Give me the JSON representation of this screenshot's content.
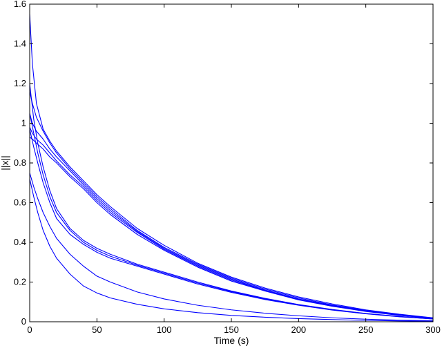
{
  "chart_data": {
    "type": "line",
    "title": "",
    "xlabel": "Time (s)",
    "ylabel": "||x||",
    "xlim": [
      0,
      300
    ],
    "ylim": [
      0,
      1.6
    ],
    "xticks": [
      0,
      50,
      100,
      150,
      200,
      250,
      300
    ],
    "yticks": [
      0,
      0.2,
      0.4,
      0.6,
      0.8,
      1,
      1.2,
      1.4,
      1.6
    ],
    "xtick_labels": [
      "0",
      "50",
      "100",
      "150",
      "200",
      "250",
      "300"
    ],
    "ytick_labels": [
      "0",
      "0.2",
      "0.4",
      "0.6",
      "0.8",
      "1",
      "1.2",
      "1.4",
      "1.6"
    ],
    "grid": false,
    "legend": "none",
    "line_color": "#0000ff",
    "series": [
      {
        "x": [
          0,
          2,
          5,
          10,
          15,
          20,
          30,
          40,
          50,
          60,
          80,
          100,
          125,
          150,
          175,
          200,
          225,
          250,
          275,
          300
        ],
        "y": [
          1.55,
          1.3,
          1.1,
          0.97,
          0.91,
          0.86,
          0.78,
          0.71,
          0.64,
          0.58,
          0.47,
          0.385,
          0.295,
          0.225,
          0.17,
          0.125,
          0.09,
          0.06,
          0.038,
          0.02
        ]
      },
      {
        "x": [
          0,
          2,
          5,
          10,
          15,
          20,
          30,
          40,
          50,
          60,
          80,
          100,
          125,
          150,
          175,
          200,
          225,
          250,
          275,
          300
        ],
        "y": [
          1.16,
          1.1,
          1.03,
          0.96,
          0.9,
          0.85,
          0.77,
          0.7,
          0.63,
          0.57,
          0.46,
          0.375,
          0.29,
          0.22,
          0.165,
          0.12,
          0.085,
          0.057,
          0.036,
          0.019
        ]
      },
      {
        "x": [
          0,
          2,
          5,
          10,
          15,
          20,
          30,
          40,
          50,
          60,
          80,
          100,
          125,
          150,
          175,
          200,
          225,
          250,
          275,
          300
        ],
        "y": [
          1.05,
          1.0,
          0.96,
          0.92,
          0.87,
          0.83,
          0.76,
          0.69,
          0.62,
          0.56,
          0.455,
          0.37,
          0.285,
          0.215,
          0.16,
          0.115,
          0.082,
          0.055,
          0.034,
          0.018
        ]
      },
      {
        "x": [
          0,
          2,
          5,
          10,
          15,
          20,
          30,
          40,
          50,
          60,
          80,
          100,
          125,
          150,
          175,
          200,
          225,
          250,
          275,
          300
        ],
        "y": [
          0.98,
          0.95,
          0.92,
          0.89,
          0.85,
          0.81,
          0.74,
          0.68,
          0.61,
          0.55,
          0.45,
          0.365,
          0.28,
          0.21,
          0.158,
          0.113,
          0.08,
          0.053,
          0.033,
          0.017
        ]
      },
      {
        "x": [
          0,
          2,
          5,
          10,
          15,
          20,
          30,
          40,
          50,
          60,
          80,
          100,
          125,
          150,
          175,
          200,
          225,
          250,
          275,
          300
        ],
        "y": [
          0.93,
          0.92,
          0.9,
          0.87,
          0.83,
          0.8,
          0.73,
          0.67,
          0.6,
          0.54,
          0.44,
          0.36,
          0.275,
          0.205,
          0.155,
          0.11,
          0.078,
          0.052,
          0.032,
          0.017
        ]
      },
      {
        "x": [
          0,
          3,
          6,
          10,
          15,
          20,
          30,
          40,
          50,
          60,
          80,
          100,
          125,
          150,
          175,
          200,
          225,
          250,
          275,
          300
        ],
        "y": [
          1.2,
          1.02,
          0.9,
          0.78,
          0.66,
          0.57,
          0.47,
          0.41,
          0.37,
          0.34,
          0.29,
          0.25,
          0.2,
          0.155,
          0.118,
          0.087,
          0.062,
          0.042,
          0.027,
          0.015
        ]
      },
      {
        "x": [
          0,
          3,
          6,
          10,
          15,
          20,
          30,
          40,
          50,
          60,
          80,
          100,
          125,
          150,
          175,
          200,
          225,
          250,
          275,
          300
        ],
        "y": [
          1.05,
          0.95,
          0.85,
          0.74,
          0.63,
          0.55,
          0.46,
          0.4,
          0.36,
          0.33,
          0.285,
          0.245,
          0.195,
          0.152,
          0.115,
          0.085,
          0.06,
          0.041,
          0.026,
          0.014
        ]
      },
      {
        "x": [
          0,
          3,
          6,
          10,
          15,
          20,
          30,
          40,
          50,
          60,
          80,
          100,
          125,
          150,
          175,
          200,
          225,
          250,
          275,
          300
        ],
        "y": [
          0.97,
          0.88,
          0.8,
          0.7,
          0.6,
          0.52,
          0.44,
          0.39,
          0.35,
          0.32,
          0.28,
          0.24,
          0.19,
          0.148,
          0.112,
          0.083,
          0.059,
          0.04,
          0.025,
          0.014
        ]
      },
      {
        "x": [
          0,
          3,
          6,
          10,
          15,
          20,
          30,
          40,
          50,
          60,
          80,
          100,
          125,
          150,
          175,
          200,
          225,
          250,
          275,
          300
        ],
        "y": [
          0.75,
          0.68,
          0.62,
          0.55,
          0.48,
          0.42,
          0.34,
          0.28,
          0.23,
          0.2,
          0.15,
          0.115,
          0.083,
          0.06,
          0.043,
          0.03,
          0.02,
          0.013,
          0.008,
          0.005
        ]
      },
      {
        "x": [
          0,
          3,
          6,
          10,
          15,
          20,
          30,
          40,
          50,
          60,
          80,
          100,
          125,
          150,
          175,
          200,
          225,
          250,
          275,
          300
        ],
        "y": [
          0.72,
          0.63,
          0.55,
          0.46,
          0.38,
          0.32,
          0.24,
          0.18,
          0.145,
          0.12,
          0.088,
          0.065,
          0.046,
          0.032,
          0.023,
          0.016,
          0.011,
          0.007,
          0.004,
          0.003
        ]
      }
    ]
  }
}
